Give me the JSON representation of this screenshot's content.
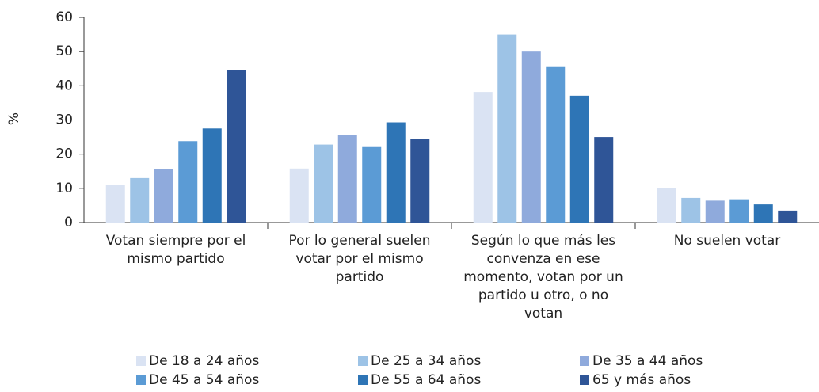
{
  "chart_data": {
    "type": "bar",
    "y_label": "%",
    "categories": [
      "Votan siempre por el mismo partido",
      "Por lo general suelen votar por el mismo partido",
      "Según lo que más les convenza en ese momento, votan por un partido u otro, o no votan",
      "No suelen votar"
    ],
    "series": [
      {
        "name": "De 18 a 24 años",
        "color": "#dae3f3",
        "values": [
          11,
          15.8,
          38.2,
          10.1
        ]
      },
      {
        "name": "De 25 a 34 años",
        "color": "#9dc3e6",
        "values": [
          13,
          22.8,
          55,
          7.2
        ]
      },
      {
        "name": "De 35 a 44 años",
        "color": "#8faadc",
        "values": [
          15.7,
          25.7,
          50,
          6.4
        ]
      },
      {
        "name": "De 45 a 54 años",
        "color": "#5b9bd5",
        "values": [
          23.8,
          22.3,
          45.7,
          6.8
        ]
      },
      {
        "name": "De 55 a 64 años",
        "color": "#2e75b6",
        "values": [
          27.5,
          29.3,
          37.1,
          5.3
        ]
      },
      {
        "name": "65 y más años",
        "color": "#2f5597",
        "values": [
          44.5,
          24.5,
          25,
          3.5
        ]
      }
    ],
    "ylim": [
      0,
      60
    ],
    "yticks": [
      0,
      10,
      20,
      30,
      40,
      50,
      60
    ],
    "grid": false,
    "legend": "bottom"
  }
}
